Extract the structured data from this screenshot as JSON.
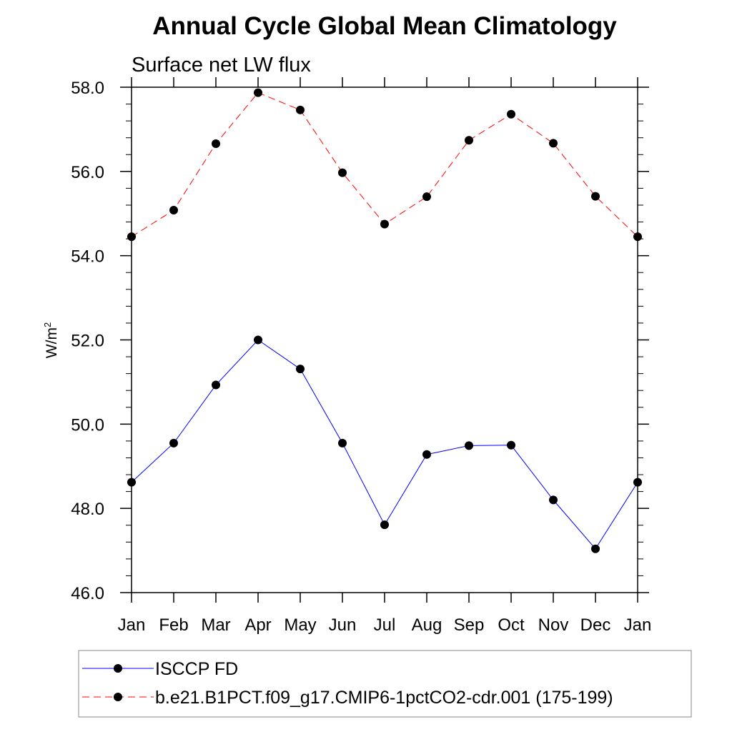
{
  "chart_data": {
    "type": "line",
    "title": "Annual Cycle Global Mean Climatology",
    "subtitle": "Surface net LW flux",
    "ylabel_base": "W/m",
    "ylabel_sup": "2",
    "xlabel": "",
    "categories": [
      "Jan",
      "Feb",
      "Mar",
      "Apr",
      "May",
      "Jun",
      "Jul",
      "Aug",
      "Sep",
      "Oct",
      "Nov",
      "Dec",
      "Jan"
    ],
    "ylim": [
      46.0,
      58.0
    ],
    "yticks": [
      "46.0",
      "48.0",
      "50.0",
      "52.0",
      "54.0",
      "56.0",
      "58.0"
    ],
    "legend_position": "bottom",
    "series": [
      {
        "name": "ISCCP FD",
        "color": "#0000ff",
        "dash": "solid",
        "values": [
          48.62,
          49.55,
          50.93,
          52.0,
          51.31,
          49.55,
          47.61,
          49.28,
          49.49,
          49.5,
          48.2,
          47.04,
          48.62
        ]
      },
      {
        "name": "b.e21.B1PCT.f09_g17.CMIP6-1pctCO2-cdr.001 (175-199)",
        "color": "#ff0000",
        "dash": "dashed",
        "values": [
          54.45,
          55.08,
          56.66,
          57.87,
          57.46,
          55.97,
          54.75,
          55.4,
          56.74,
          57.36,
          56.67,
          55.41,
          54.45
        ]
      }
    ]
  }
}
